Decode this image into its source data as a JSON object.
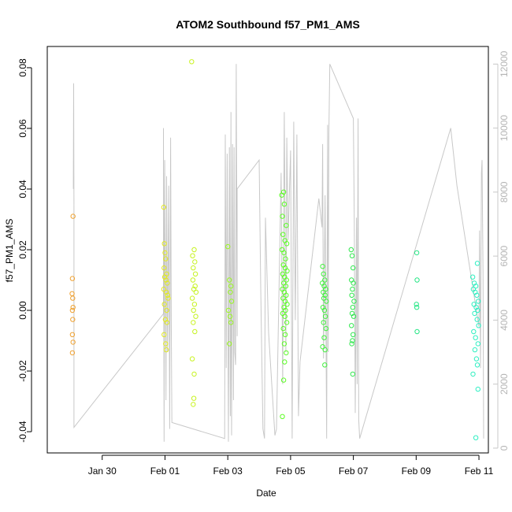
{
  "chart_data": {
    "type": "scatter",
    "title": "ATOM2 Southbound f57_PM1_AMS",
    "xlabel": "Date",
    "ylabel": "f57_PM1_AMS",
    "x_unit": "days since Jan 30",
    "xlim": [
      -1.75,
      12.3
    ],
    "ylim": [
      -0.047,
      0.087
    ],
    "y_ticks": [
      -0.04,
      -0.02,
      0.0,
      0.02,
      0.04,
      0.06,
      0.08
    ],
    "y_tick_labels": [
      "-0.04",
      "-0.02",
      "0.00",
      "0.02",
      "0.04",
      "0.06",
      "0.08"
    ],
    "x_ticks": [
      0,
      2,
      4,
      6,
      8,
      10,
      12
    ],
    "x_tick_labels": [
      "Jan 30",
      "Feb 01",
      "Feb 03",
      "Feb 05",
      "Feb 07",
      "Feb 09",
      "Feb 11"
    ],
    "secondary_axis": {
      "color": "#c8c8c8",
      "ylim": [
        -150,
        12550
      ],
      "ticks": [
        0,
        2000,
        4000,
        6000,
        8000,
        10000,
        12000
      ],
      "tick_labels": [
        "0",
        "2000",
        "4000",
        "6000",
        "8000",
        "10000",
        "12000"
      ],
      "line_points": [
        [
          -0.92,
          8100
        ],
        [
          -0.91,
          11400
        ],
        [
          -0.9,
          7500
        ],
        [
          -0.9,
          650
        ],
        [
          1.95,
          4200
        ],
        [
          1.95,
          10000
        ],
        [
          1.97,
          200
        ],
        [
          1.99,
          9000
        ],
        [
          2.03,
          1500
        ],
        [
          2.05,
          8500
        ],
        [
          2.08,
          3000
        ],
        [
          2.12,
          8200
        ],
        [
          2.15,
          600
        ],
        [
          2.18,
          9700
        ],
        [
          2.2,
          4000
        ],
        [
          2.22,
          800
        ],
        [
          3.9,
          300
        ],
        [
          3.92,
          9800
        ],
        [
          3.95,
          2500
        ],
        [
          3.98,
          9200
        ],
        [
          4.02,
          200
        ],
        [
          4.05,
          9400
        ],
        [
          4.08,
          1000
        ],
        [
          4.1,
          10500
        ],
        [
          4.1,
          5800
        ],
        [
          4.12,
          400
        ],
        [
          4.15,
          9500
        ],
        [
          4.18,
          1500
        ],
        [
          4.2,
          9400
        ],
        [
          4.22,
          3000
        ],
        [
          4.25,
          2600
        ],
        [
          4.27,
          12000
        ],
        [
          4.3,
          3500
        ],
        [
          4.3,
          8100
        ],
        [
          5.0,
          9000
        ],
        [
          5.05,
          5000
        ],
        [
          5.12,
          600
        ],
        [
          5.17,
          300
        ],
        [
          5.2,
          7200
        ],
        [
          5.3,
          3600
        ],
        [
          5.5,
          400
        ],
        [
          5.55,
          600
        ],
        [
          5.7,
          8600
        ],
        [
          5.75,
          2000
        ],
        [
          5.8,
          10500
        ],
        [
          5.85,
          3000
        ],
        [
          5.88,
          9700
        ],
        [
          5.92,
          6500
        ],
        [
          5.98,
          8600
        ],
        [
          6.0,
          9300
        ],
        [
          6.05,
          300
        ],
        [
          6.1,
          10200
        ],
        [
          6.15,
          4000
        ],
        [
          6.2,
          9800
        ],
        [
          6.25,
          1000
        ],
        [
          6.3,
          2700
        ],
        [
          6.9,
          7800
        ],
        [
          7.0,
          6900
        ],
        [
          7.02,
          9500
        ],
        [
          7.05,
          2800
        ],
        [
          7.1,
          7900
        ],
        [
          7.15,
          300
        ],
        [
          7.18,
          10100
        ],
        [
          7.2,
          3000
        ],
        [
          7.22,
          9800
        ],
        [
          7.25,
          12000
        ],
        [
          8.0,
          10300
        ],
        [
          8.03,
          7000
        ],
        [
          8.06,
          1100
        ],
        [
          8.1,
          7200
        ],
        [
          8.12,
          2000
        ],
        [
          8.15,
          10300
        ],
        [
          8.17,
          900
        ],
        [
          8.2,
          300
        ],
        [
          11.1,
          10000
        ],
        [
          11.3,
          8200
        ],
        [
          12.0,
          3800
        ],
        [
          12.02,
          6800
        ],
        [
          12.05,
          2500
        ],
        [
          12.08,
          8600
        ],
        [
          12.1,
          9000
        ],
        [
          12.13,
          5500
        ],
        [
          12.15,
          300
        ]
      ]
    },
    "series": [
      {
        "name": "f57_PM1_AMS",
        "points": [
          [
            -0.93,
            0.031
          ],
          [
            -0.95,
            0.0105
          ],
          [
            -0.96,
            0.0055
          ],
          [
            -0.94,
            0.004
          ],
          [
            -0.93,
            0.001
          ],
          [
            -0.95,
            0.0
          ],
          [
            -0.94,
            -0.003
          ],
          [
            -0.95,
            -0.008
          ],
          [
            -0.93,
            -0.0105
          ],
          [
            -0.95,
            -0.014
          ],
          [
            1.96,
            0.034
          ],
          [
            1.98,
            0.022
          ],
          [
            2.0,
            0.019
          ],
          [
            2.02,
            0.017
          ],
          [
            1.97,
            0.014
          ],
          [
            2.05,
            0.012
          ],
          [
            1.99,
            0.011
          ],
          [
            2.03,
            0.01
          ],
          [
            2.07,
            0.009
          ],
          [
            1.96,
            0.007
          ],
          [
            2.04,
            0.006
          ],
          [
            2.08,
            0.005
          ],
          [
            2.1,
            0.004
          ],
          [
            1.98,
            0.002
          ],
          [
            2.05,
            0.0
          ],
          [
            2.01,
            -0.003
          ],
          [
            2.06,
            -0.004
          ],
          [
            1.97,
            -0.008
          ],
          [
            2.02,
            -0.011
          ],
          [
            2.04,
            -0.013
          ],
          [
            2.85,
            0.082
          ],
          [
            2.93,
            0.02
          ],
          [
            2.88,
            0.018
          ],
          [
            2.95,
            0.016
          ],
          [
            2.9,
            0.014
          ],
          [
            2.97,
            0.012
          ],
          [
            2.89,
            0.01
          ],
          [
            2.96,
            0.008
          ],
          [
            2.92,
            0.007
          ],
          [
            2.99,
            0.006
          ],
          [
            2.87,
            0.004
          ],
          [
            2.94,
            0.002
          ],
          [
            2.91,
            0.0
          ],
          [
            2.98,
            -0.002
          ],
          [
            2.9,
            -0.004
          ],
          [
            2.95,
            -0.007
          ],
          [
            2.87,
            -0.016
          ],
          [
            2.93,
            -0.021
          ],
          [
            2.92,
            -0.029
          ],
          [
            2.9,
            -0.031
          ],
          [
            4.0,
            0.021
          ],
          [
            4.05,
            0.01
          ],
          [
            4.1,
            0.008
          ],
          [
            4.08,
            0.006
          ],
          [
            4.12,
            0.003
          ],
          [
            4.02,
            0.0
          ],
          [
            4.07,
            -0.002
          ],
          [
            4.1,
            -0.004
          ],
          [
            4.05,
            -0.011
          ],
          [
            5.72,
            0.038
          ],
          [
            5.78,
            0.039
          ],
          [
            5.8,
            0.035
          ],
          [
            5.74,
            0.031
          ],
          [
            5.86,
            0.028
          ],
          [
            5.76,
            0.025
          ],
          [
            5.82,
            0.023
          ],
          [
            5.88,
            0.022
          ],
          [
            5.73,
            0.02
          ],
          [
            5.79,
            0.019
          ],
          [
            5.84,
            0.017
          ],
          [
            5.77,
            0.015
          ],
          [
            5.83,
            0.014
          ],
          [
            5.89,
            0.013
          ],
          [
            5.75,
            0.012
          ],
          [
            5.81,
            0.011
          ],
          [
            5.87,
            0.01
          ],
          [
            5.78,
            0.009
          ],
          [
            5.85,
            0.008
          ],
          [
            5.74,
            0.007
          ],
          [
            5.8,
            0.006
          ],
          [
            5.86,
            0.005
          ],
          [
            5.76,
            0.004
          ],
          [
            5.83,
            0.003
          ],
          [
            5.89,
            0.002
          ],
          [
            5.79,
            0.001
          ],
          [
            5.84,
            0.0
          ],
          [
            5.75,
            -0.001
          ],
          [
            5.82,
            -0.002
          ],
          [
            5.88,
            -0.004
          ],
          [
            5.77,
            -0.006
          ],
          [
            5.83,
            -0.008
          ],
          [
            5.8,
            -0.011
          ],
          [
            5.86,
            -0.014
          ],
          [
            5.81,
            -0.017
          ],
          [
            5.78,
            -0.023
          ],
          [
            5.74,
            -0.035
          ],
          [
            7.02,
            0.0145
          ],
          [
            7.05,
            0.012
          ],
          [
            7.09,
            0.01
          ],
          [
            7.01,
            0.009
          ],
          [
            7.07,
            0.008
          ],
          [
            7.12,
            0.007
          ],
          [
            7.04,
            0.006
          ],
          [
            7.1,
            0.005
          ],
          [
            7.06,
            0.004
          ],
          [
            7.14,
            0.003
          ],
          [
            7.03,
            0.001
          ],
          [
            7.08,
            0.0
          ],
          [
            7.11,
            -0.002
          ],
          [
            7.05,
            -0.004
          ],
          [
            7.13,
            -0.006
          ],
          [
            7.07,
            -0.009
          ],
          [
            7.02,
            -0.012
          ],
          [
            7.1,
            -0.013
          ],
          [
            7.09,
            -0.018
          ],
          [
            7.93,
            0.02
          ],
          [
            7.96,
            0.018
          ],
          [
            7.99,
            0.014
          ],
          [
            7.94,
            0.01
          ],
          [
            8.0,
            0.009
          ],
          [
            7.97,
            0.007
          ],
          [
            7.95,
            0.005
          ],
          [
            8.02,
            0.003
          ],
          [
            7.98,
            0.001
          ],
          [
            7.96,
            -0.001
          ],
          [
            8.01,
            -0.002
          ],
          [
            7.94,
            -0.005
          ],
          [
            7.99,
            -0.008
          ],
          [
            7.97,
            -0.01
          ],
          [
            7.95,
            -0.011
          ],
          [
            7.98,
            -0.021
          ],
          [
            10.02,
            0.019
          ],
          [
            10.03,
            0.01
          ],
          [
            10.01,
            0.002
          ],
          [
            10.02,
            0.001
          ],
          [
            10.03,
            -0.007
          ],
          [
            11.8,
            0.011
          ],
          [
            11.85,
            0.009
          ],
          [
            11.9,
            0.008
          ],
          [
            11.95,
            0.0155
          ],
          [
            11.82,
            0.007
          ],
          [
            11.88,
            0.006
          ],
          [
            11.93,
            0.005
          ],
          [
            11.98,
            0.003
          ],
          [
            11.84,
            0.002
          ],
          [
            11.91,
            0.001
          ],
          [
            11.96,
            0.0
          ],
          [
            11.86,
            -0.001
          ],
          [
            11.94,
            -0.003
          ],
          [
            11.99,
            -0.005
          ],
          [
            11.83,
            -0.007
          ],
          [
            11.89,
            -0.009
          ],
          [
            11.97,
            -0.011
          ],
          [
            11.87,
            -0.013
          ],
          [
            11.92,
            -0.016
          ],
          [
            11.95,
            -0.018
          ],
          [
            11.81,
            -0.021
          ],
          [
            11.97,
            -0.026
          ],
          [
            11.9,
            -0.042
          ]
        ]
      }
    ],
    "colors": {
      "line": "#c8c8c8",
      "gradient_stops": [
        "#f0a030",
        "#e0f020",
        "#60ff20",
        "#20e060",
        "#30f0c8"
      ]
    }
  }
}
